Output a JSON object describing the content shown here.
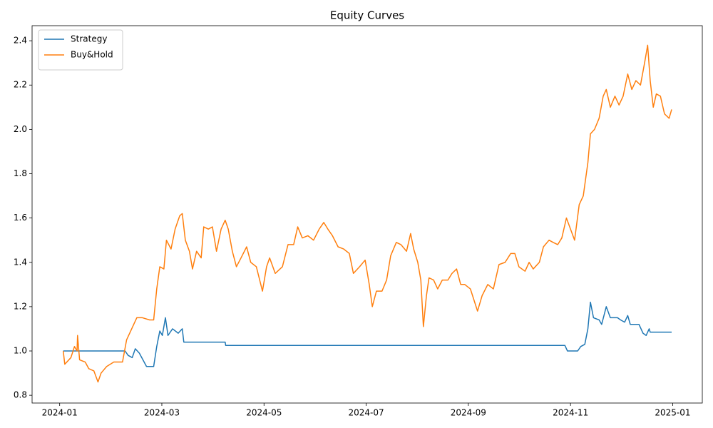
{
  "chart_data": {
    "type": "line",
    "title": "Equity Curves",
    "xlim": [
      -0.54,
      12.58
    ],
    "ylim": [
      0.765,
      2.468
    ],
    "xticks": [
      {
        "value": 0,
        "label": "2024-01"
      },
      {
        "value": 2,
        "label": "2024-03"
      },
      {
        "value": 4,
        "label": "2024-05"
      },
      {
        "value": 6,
        "label": "2024-07"
      },
      {
        "value": 8,
        "label": "2024-09"
      },
      {
        "value": 10,
        "label": "2024-11"
      },
      {
        "value": 12,
        "label": "2025-01"
      }
    ],
    "yticks": [
      0.8,
      {
        "value": 1,
        "label": "1.0"
      },
      1.2,
      1.4,
      1.6,
      1.8,
      {
        "value": 2,
        "label": "2.0"
      },
      2.2,
      2.4
    ],
    "legend": "upper left",
    "series": [
      {
        "name": "Strategy",
        "color": "#1f77b4",
        "x": [
          0.07,
          1.28,
          1.34,
          1.42,
          1.48,
          1.56,
          1.7,
          1.84,
          1.9,
          1.96,
          2.01,
          2.07,
          2.12,
          2.21,
          2.32,
          2.4,
          2.43,
          3.24,
          3.25,
          9.89,
          9.94,
          10.14,
          10.2,
          10.28,
          10.34,
          10.39,
          10.45,
          10.56,
          10.61,
          10.7,
          10.78,
          10.92,
          10.98,
          11.06,
          11.12,
          11.17,
          11.34,
          11.42,
          11.48,
          11.54,
          11.56,
          11.98
        ],
        "values": [
          1.0,
          1.0,
          0.98,
          0.97,
          1.01,
          0.99,
          0.93,
          0.93,
          1.02,
          1.09,
          1.07,
          1.15,
          1.07,
          1.1,
          1.08,
          1.1,
          1.04,
          1.04,
          1.025,
          1.025,
          1.0,
          1.0,
          1.02,
          1.03,
          1.1,
          1.22,
          1.15,
          1.14,
          1.12,
          1.2,
          1.15,
          1.15,
          1.14,
          1.13,
          1.16,
          1.12,
          1.12,
          1.08,
          1.07,
          1.1,
          1.085,
          1.085
        ]
      },
      {
        "name": "Buy&Hold",
        "color": "#ff7f0e",
        "x": [
          0.07,
          0.1,
          0.22,
          0.29,
          0.34,
          0.35,
          0.39,
          0.5,
          0.57,
          0.67,
          0.75,
          0.81,
          0.92,
          1.06,
          1.23,
          1.31,
          1.41,
          1.51,
          1.62,
          1.76,
          1.84,
          1.9,
          1.96,
          2.04,
          2.09,
          2.18,
          2.26,
          2.35,
          2.4,
          2.46,
          2.54,
          2.6,
          2.68,
          2.77,
          2.82,
          2.91,
          2.99,
          3.07,
          3.16,
          3.24,
          3.3,
          3.38,
          3.46,
          3.55,
          3.66,
          3.74,
          3.85,
          3.97,
          4.05,
          4.11,
          4.22,
          4.36,
          4.47,
          4.58,
          4.66,
          4.75,
          4.86,
          4.97,
          5.08,
          5.17,
          5.25,
          5.34,
          5.45,
          5.56,
          5.67,
          5.75,
          5.87,
          5.98,
          6.06,
          6.12,
          6.2,
          6.31,
          6.4,
          6.48,
          6.59,
          6.68,
          6.79,
          6.87,
          6.93,
          7.01,
          7.07,
          7.12,
          7.18,
          7.23,
          7.32,
          7.4,
          7.49,
          7.6,
          7.68,
          7.77,
          7.85,
          7.93,
          8.04,
          8.18,
          8.27,
          8.38,
          8.49,
          8.6,
          8.72,
          8.83,
          8.91,
          8.99,
          9.11,
          9.19,
          9.27,
          9.39,
          9.47,
          9.58,
          9.66,
          9.75,
          9.83,
          9.92,
          10.0,
          10.08,
          10.17,
          10.25,
          10.34,
          10.39,
          10.47,
          10.56,
          10.64,
          10.7,
          10.78,
          10.87,
          10.95,
          11.03,
          11.12,
          11.2,
          11.28,
          11.37,
          11.45,
          11.51,
          11.56,
          11.62,
          11.68,
          11.76,
          11.84,
          11.93,
          11.98
        ],
        "values": [
          1.0,
          0.94,
          0.97,
          1.02,
          1.0,
          1.07,
          0.96,
          0.95,
          0.92,
          0.91,
          0.86,
          0.9,
          0.93,
          0.95,
          0.95,
          1.05,
          1.1,
          1.15,
          1.15,
          1.14,
          1.14,
          1.28,
          1.38,
          1.37,
          1.5,
          1.46,
          1.55,
          1.61,
          1.62,
          1.5,
          1.45,
          1.37,
          1.45,
          1.42,
          1.56,
          1.55,
          1.56,
          1.45,
          1.55,
          1.59,
          1.55,
          1.45,
          1.38,
          1.42,
          1.47,
          1.4,
          1.38,
          1.27,
          1.38,
          1.42,
          1.35,
          1.38,
          1.48,
          1.48,
          1.56,
          1.51,
          1.52,
          1.5,
          1.55,
          1.58,
          1.55,
          1.52,
          1.47,
          1.46,
          1.44,
          1.35,
          1.38,
          1.41,
          1.3,
          1.2,
          1.27,
          1.27,
          1.32,
          1.43,
          1.49,
          1.48,
          1.45,
          1.53,
          1.46,
          1.4,
          1.32,
          1.11,
          1.25,
          1.33,
          1.32,
          1.28,
          1.32,
          1.32,
          1.35,
          1.37,
          1.3,
          1.3,
          1.28,
          1.18,
          1.25,
          1.3,
          1.28,
          1.39,
          1.4,
          1.44,
          1.44,
          1.38,
          1.36,
          1.4,
          1.37,
          1.4,
          1.47,
          1.5,
          1.49,
          1.48,
          1.51,
          1.6,
          1.55,
          1.5,
          1.66,
          1.7,
          1.85,
          1.98,
          2.0,
          2.05,
          2.15,
          2.18,
          2.1,
          2.15,
          2.11,
          2.15,
          2.25,
          2.18,
          2.22,
          2.2,
          2.3,
          2.38,
          2.22,
          2.1,
          2.16,
          2.15,
          2.07,
          2.05,
          2.09
        ]
      }
    ]
  }
}
